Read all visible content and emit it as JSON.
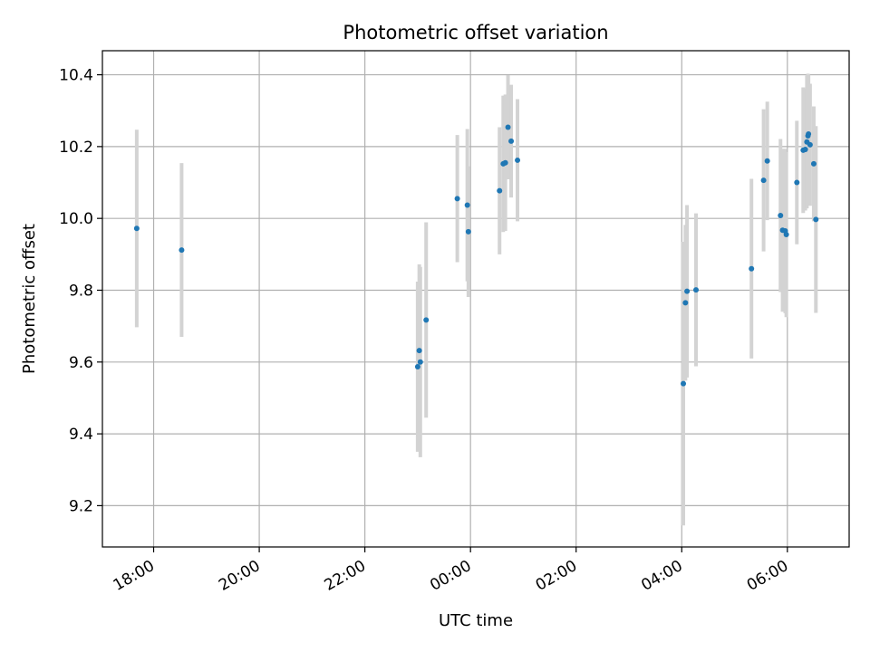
{
  "chart_data": {
    "type": "scatter",
    "title": "Photometric offset variation",
    "xlabel": "UTC time",
    "ylabel": "Photometric offset",
    "x_unit": "hours since 00:00 UTC",
    "xlim": [
      -6.97,
      7.17
    ],
    "ylim": [
      9.085,
      10.467
    ],
    "grid": true,
    "x_ticks": [
      {
        "value": -6,
        "label": "18:00"
      },
      {
        "value": -4,
        "label": "20:00"
      },
      {
        "value": -2,
        "label": "22:00"
      },
      {
        "value": 0,
        "label": "00:00"
      },
      {
        "value": 2,
        "label": "02:00"
      },
      {
        "value": 4,
        "label": "04:00"
      },
      {
        "value": 6,
        "label": "06:00"
      }
    ],
    "y_ticks": [
      {
        "value": 9.2,
        "label": "9.2"
      },
      {
        "value": 9.4,
        "label": "9.4"
      },
      {
        "value": 9.6,
        "label": "9.6"
      },
      {
        "value": 9.8,
        "label": "9.8"
      },
      {
        "value": 10.0,
        "label": "10.0"
      },
      {
        "value": 10.2,
        "label": "10.2"
      },
      {
        "value": 10.4,
        "label": "10.4"
      }
    ],
    "marker_color": "#1f77b4",
    "errorbar_color": "#d3d3d3",
    "points": [
      {
        "x": -6.32,
        "y": 9.972,
        "err": 0.275
      },
      {
        "x": -5.47,
        "y": 9.912,
        "err": 0.242
      },
      {
        "x": -1.0,
        "y": 9.587,
        "err": 0.237
      },
      {
        "x": -0.97,
        "y": 9.632,
        "err": 0.24
      },
      {
        "x": -0.95,
        "y": 9.6,
        "err": 0.265
      },
      {
        "x": -0.84,
        "y": 9.717,
        "err": 0.272
      },
      {
        "x": -0.25,
        "y": 10.055,
        "err": 0.177
      },
      {
        "x": -0.06,
        "y": 10.037,
        "err": 0.212
      },
      {
        "x": -0.04,
        "y": 9.963,
        "err": 0.182
      },
      {
        "x": 0.55,
        "y": 10.077,
        "err": 0.177
      },
      {
        "x": 0.62,
        "y": 10.152,
        "err": 0.19
      },
      {
        "x": 0.66,
        "y": 10.155,
        "err": 0.19
      },
      {
        "x": 0.71,
        "y": 10.254,
        "err": 0.145
      },
      {
        "x": 0.77,
        "y": 10.215,
        "err": 0.157
      },
      {
        "x": 0.89,
        "y": 10.162,
        "err": 0.17
      },
      {
        "x": 4.03,
        "y": 9.54,
        "err": 0.395
      },
      {
        "x": 4.07,
        "y": 9.765,
        "err": 0.217
      },
      {
        "x": 4.1,
        "y": 9.797,
        "err": 0.24
      },
      {
        "x": 4.27,
        "y": 9.801,
        "err": 0.213
      },
      {
        "x": 5.32,
        "y": 9.86,
        "err": 0.25
      },
      {
        "x": 5.55,
        "y": 10.106,
        "err": 0.198
      },
      {
        "x": 5.62,
        "y": 10.16,
        "err": 0.165
      },
      {
        "x": 5.87,
        "y": 10.008,
        "err": 0.213
      },
      {
        "x": 5.91,
        "y": 9.967,
        "err": 0.227
      },
      {
        "x": 5.96,
        "y": 9.965,
        "err": 0.229
      },
      {
        "x": 5.98,
        "y": 9.955,
        "err": 0.23
      },
      {
        "x": 6.18,
        "y": 10.1,
        "err": 0.172
      },
      {
        "x": 6.3,
        "y": 10.19,
        "err": 0.175
      },
      {
        "x": 6.34,
        "y": 10.192,
        "err": 0.17
      },
      {
        "x": 6.37,
        "y": 10.213,
        "err": 0.185
      },
      {
        "x": 6.39,
        "y": 10.23,
        "err": 0.173
      },
      {
        "x": 6.4,
        "y": 10.235,
        "err": 0.165
      },
      {
        "x": 6.43,
        "y": 10.205,
        "err": 0.17
      },
      {
        "x": 6.5,
        "y": 10.152,
        "err": 0.16
      },
      {
        "x": 6.54,
        "y": 9.997,
        "err": 0.26
      }
    ]
  }
}
